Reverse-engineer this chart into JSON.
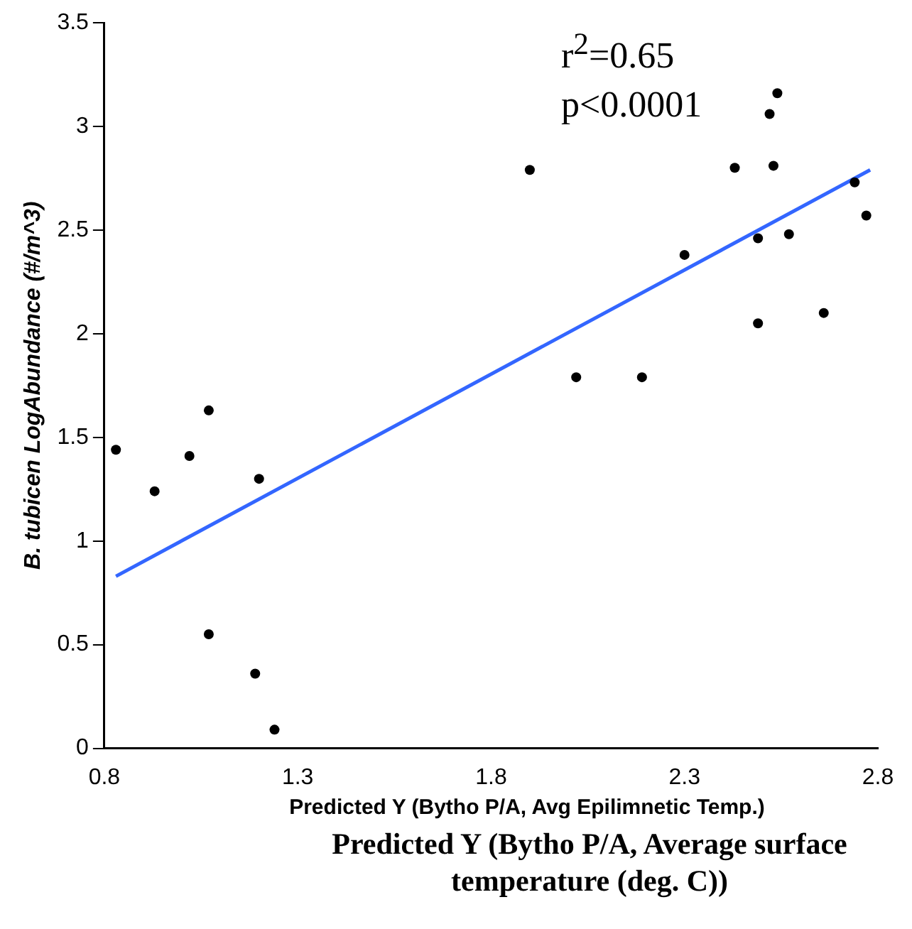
{
  "chart_data": {
    "type": "scatter",
    "xlabel": "Predicted Y (Bytho P/A, Average surface temperature (deg. C))",
    "ylabel": "B. tubicen LogAbundance (#/m^3)",
    "annotations": [
      "r$^{2}$=0.65",
      "p<0.0001",
      "Predicted Y (Bytho P/A, Avg Epilimnetic Temp.)"
    ],
    "xlim": [
      0.8,
      2.8
    ],
    "xticks": [
      0.8,
      1.3,
      1.8,
      2.3,
      2.8
    ],
    "ylim": [
      0,
      3.5
    ],
    "yticks": [
      0,
      0.5,
      1,
      1.5,
      2,
      2.5,
      3,
      3.5
    ],
    "grid": false,
    "legend": false,
    "marker": "circle",
    "series": [
      {
        "color": "#000000",
        "x": [
          0.83,
          0.93,
          1.02,
          1.07,
          1.2,
          1.07,
          1.19,
          1.24,
          1.9,
          2.02,
          2.19,
          2.3,
          2.43,
          2.49,
          2.49,
          2.52,
          2.54,
          2.53,
          2.57,
          2.66,
          2.74,
          2.77
        ],
        "values": [
          1.44,
          1.24,
          1.41,
          1.63,
          1.3,
          0.55,
          0.36,
          0.09,
          2.79,
          1.79,
          1.79,
          2.38,
          2.8,
          2.46,
          2.05,
          3.06,
          3.16,
          2.81,
          2.48,
          2.1,
          2.73,
          2.57
        ]
      },
      {
        "type": "line",
        "color": "#3366ff",
        "marker": "none",
        "x": [
          0.83,
          2.78
        ],
        "values": [
          0.83,
          2.79
        ]
      }
    ]
  }
}
